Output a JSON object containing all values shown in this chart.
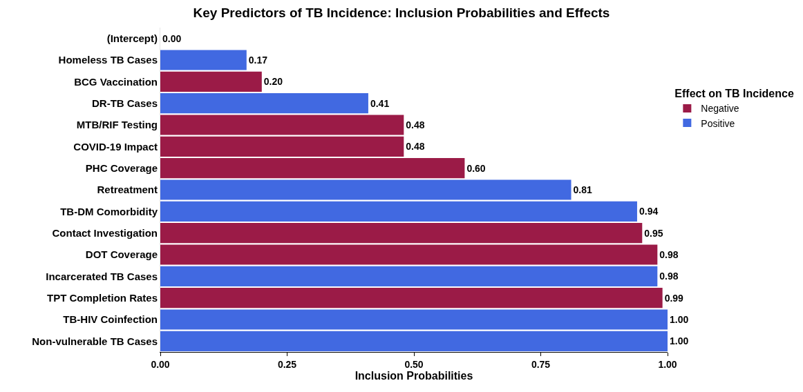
{
  "chart_data": {
    "type": "bar",
    "orientation": "horizontal",
    "stacked": true,
    "title": "Key Predictors of TB Incidence: Inclusion Probabilities and Effects",
    "xlabel": "Inclusion Probabilities",
    "legend_title": "Effect on TB Incidence",
    "legend": "right",
    "categories": [
      "(Intercept)",
      "Homeless TB Cases",
      "BCG Vaccination",
      "DR-TB Cases",
      "MTB/RIF Testing",
      "COVID-19 Impact",
      "PHC Coverage",
      "Retreatment",
      "TB-DM Comorbidity",
      "Contact Investigation",
      "DOT Coverage",
      "Incarcerated TB Cases",
      "TPT Completion Rates",
      "TB-HIV Coinfection",
      "Non-vulnerable TB Cases"
    ],
    "series": [
      {
        "name": "Negative",
        "color": "#9b1b47",
        "values": [
          null,
          null,
          0.2,
          null,
          0.48,
          0.48,
          0.6,
          null,
          null,
          0.95,
          0.98,
          null,
          0.99,
          null,
          null
        ],
        "value_labels": [
          null,
          null,
          "0.20",
          null,
          "0.48",
          "0.48",
          "0.60",
          null,
          null,
          "0.95",
          "0.98",
          null,
          "0.99",
          null,
          null
        ]
      },
      {
        "name": "Positive",
        "color": "#4169e1",
        "values": [
          0,
          0.17,
          null,
          0.41,
          null,
          null,
          null,
          0.81,
          0.94,
          null,
          null,
          0.98,
          null,
          1,
          1
        ],
        "value_labels": [
          "0.00",
          "0.17",
          null,
          "0.41",
          null,
          null,
          null,
          "0.81",
          "0.94",
          null,
          null,
          "0.98",
          null,
          "1.00",
          "1.00"
        ]
      }
    ],
    "xlim": [
      0,
      1
    ],
    "xticks": [
      {
        "value": 0,
        "label": "0.00"
      },
      {
        "value": 0.25,
        "label": "0.25"
      },
      {
        "value": 0.5,
        "label": "0.50"
      },
      {
        "value": 0.75,
        "label": "0.75"
      },
      {
        "value": 1,
        "label": "1.00"
      }
    ],
    "grid": false
  }
}
